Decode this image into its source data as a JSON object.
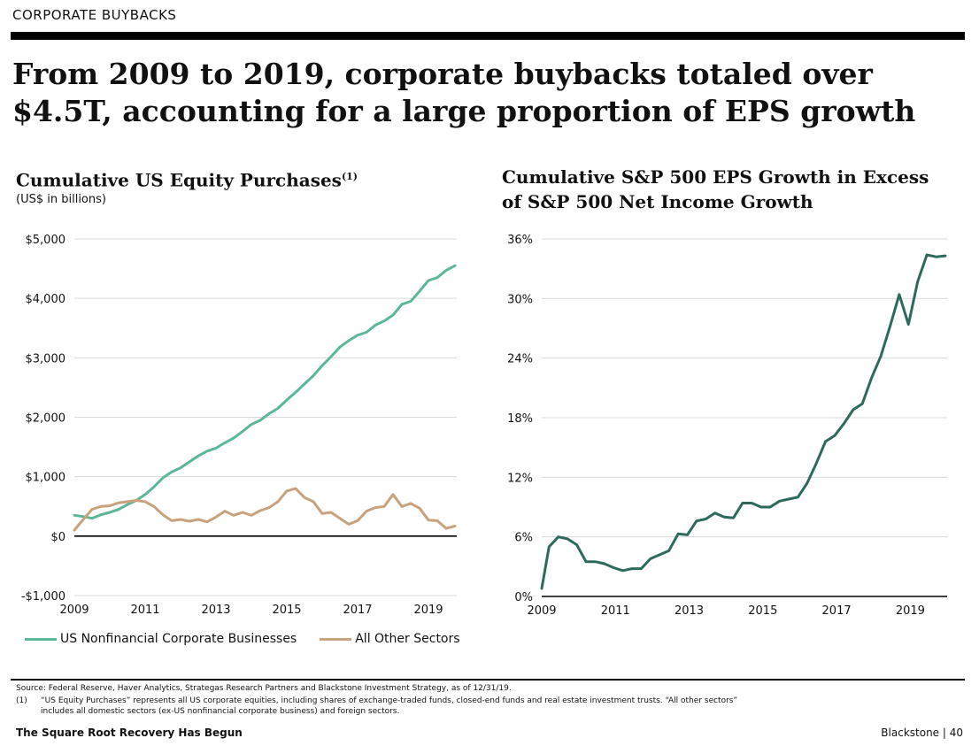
{
  "header": {
    "section_label": "CORPORATE BUYBACKS",
    "headline_line1": "From 2009 to 2019, corporate buybacks totaled over",
    "headline_line2": "$4.5T, accounting for a large proportion of EPS growth"
  },
  "colors": {
    "nonfinancial": "#5bb897",
    "other_sectors": "#c8a27c",
    "eps": "#2c6b5c",
    "grid": "#d9d9d9",
    "axis": "#000000"
  },
  "chart_data": [
    {
      "type": "line",
      "title": "Cumulative US Equity Purchases",
      "title_footnote": "(1)",
      "subtitle": "(US$ in billions)",
      "xlabel": "",
      "ylabel": "",
      "xlim": [
        2009,
        2019.8
      ],
      "ylim": [
        -1000,
        5000
      ],
      "ytick_values": [
        -1000,
        0,
        1000,
        2000,
        3000,
        4000,
        5000
      ],
      "ytick_labels": [
        "-$1,000",
        "$0",
        "$1,000",
        "$2,000",
        "$3,000",
        "$4,000",
        "$5,000"
      ],
      "xtick_values": [
        2009,
        2011,
        2013,
        2015,
        2017,
        2019
      ],
      "xtick_labels": [
        "2009",
        "2011",
        "2013",
        "2015",
        "2017",
        "2019"
      ],
      "grid": true,
      "series": [
        {
          "name": "US Nonfinancial Corporate Businesses",
          "x": [
            2009,
            2009.25,
            2009.5,
            2009.75,
            2010,
            2010.25,
            2010.5,
            2010.75,
            2011,
            2011.25,
            2011.5,
            2011.75,
            2012,
            2012.25,
            2012.5,
            2012.75,
            2013,
            2013.25,
            2013.5,
            2013.75,
            2014,
            2014.25,
            2014.5,
            2014.75,
            2015,
            2015.25,
            2015.5,
            2015.75,
            2016,
            2016.25,
            2016.5,
            2016.75,
            2017,
            2017.25,
            2017.5,
            2017.75,
            2018,
            2018.25,
            2018.5,
            2018.75,
            2019,
            2019.25,
            2019.5,
            2019.75
          ],
          "values": [
            350,
            330,
            300,
            360,
            400,
            450,
            530,
            600,
            700,
            830,
            980,
            1080,
            1150,
            1250,
            1350,
            1430,
            1480,
            1570,
            1650,
            1760,
            1880,
            1950,
            2060,
            2150,
            2290,
            2420,
            2560,
            2700,
            2870,
            3020,
            3180,
            3290,
            3380,
            3430,
            3550,
            3620,
            3720,
            3900,
            3950,
            4120,
            4300,
            4350,
            4470,
            4550
          ]
        },
        {
          "name": "All Other Sectors",
          "x": [
            2009,
            2009.25,
            2009.5,
            2009.75,
            2010,
            2010.25,
            2010.5,
            2010.75,
            2011,
            2011.25,
            2011.5,
            2011.75,
            2012,
            2012.25,
            2012.5,
            2012.75,
            2013,
            2013.25,
            2013.5,
            2013.75,
            2014,
            2014.25,
            2014.5,
            2014.75,
            2015,
            2015.25,
            2015.5,
            2015.75,
            2016,
            2016.25,
            2016.5,
            2016.75,
            2017,
            2017.25,
            2017.5,
            2017.75,
            2018,
            2018.25,
            2018.5,
            2018.75,
            2019,
            2019.25,
            2019.5,
            2019.75
          ],
          "values": [
            100,
            280,
            450,
            500,
            510,
            560,
            580,
            600,
            580,
            500,
            360,
            260,
            280,
            250,
            280,
            240,
            320,
            420,
            350,
            400,
            350,
            430,
            480,
            580,
            760,
            800,
            650,
            580,
            380,
            400,
            300,
            200,
            260,
            420,
            480,
            500,
            700,
            500,
            550,
            470,
            270,
            260,
            130,
            170
          ]
        }
      ],
      "legend": [
        "US Nonfinancial Corporate Businesses",
        "All Other Sectors"
      ],
      "legend_position": "bottom"
    },
    {
      "type": "line",
      "title": "Cumulative S&P 500 EPS Growth in Excess of S&P 500 Net Income Growth",
      "title_line1": "Cumulative S&P 500 EPS Growth in Excess",
      "title_line2": "of S&P 500 Net Income Growth",
      "xlabel": "",
      "ylabel": "",
      "xlim": [
        2009,
        2020
      ],
      "ylim": [
        0,
        36
      ],
      "ytick_values": [
        0,
        6,
        12,
        18,
        24,
        30,
        36
      ],
      "ytick_labels": [
        "0%",
        "6%",
        "12%",
        "18%",
        "24%",
        "30%",
        "36%"
      ],
      "xtick_values": [
        2009,
        2011,
        2013,
        2015,
        2017,
        2019
      ],
      "xtick_labels": [
        "2009",
        "2011",
        "2013",
        "2015",
        "2017",
        "2019"
      ],
      "grid": true,
      "series": [
        {
          "name": "Cumulative S&P 500 EPS Growth in Excess of Net Income Growth",
          "x": [
            2009,
            2009.2,
            2009.45,
            2009.7,
            2009.95,
            2010.2,
            2010.45,
            2010.7,
            2010.95,
            2011.2,
            2011.45,
            2011.7,
            2011.95,
            2012.2,
            2012.45,
            2012.7,
            2012.95,
            2013.2,
            2013.45,
            2013.7,
            2013.95,
            2014.2,
            2014.45,
            2014.7,
            2014.95,
            2015.2,
            2015.45,
            2015.7,
            2015.95,
            2016.2,
            2016.45,
            2016.7,
            2016.95,
            2017.2,
            2017.45,
            2017.7,
            2017.95,
            2018.2,
            2018.45,
            2018.7,
            2018.95,
            2019.2,
            2019.45,
            2019.7,
            2019.95
          ],
          "values": [
            0.8,
            5,
            6,
            5.8,
            5.2,
            3.5,
            3.5,
            3.3,
            2.9,
            2.6,
            2.8,
            2.8,
            3.8,
            4.2,
            4.6,
            6.3,
            6.2,
            7.6,
            7.8,
            8.4,
            8.0,
            7.9,
            9.4,
            9.4,
            9.0,
            9.0,
            9.6,
            9.8,
            10.0,
            11.4,
            13.4,
            15.6,
            16.2,
            17.4,
            18.8,
            19.4,
            22.0,
            24.2,
            27.2,
            30.4,
            27.4,
            31.7,
            34.4,
            34.2,
            34.3
          ]
        }
      ],
      "legend": [],
      "legend_position": "none"
    }
  ],
  "footer": {
    "source": "Source: Federal Reserve, Haver Analytics, Strategas Research Partners and Blackstone Investment Strategy, as of 12/31/19.",
    "footnote_num": "(1)",
    "footnote_text_line1": "“US Equity Purchases” represents all US corporate equities, including shares of exchange-traded funds, closed-end funds and real estate investment trusts. “All other sectors”",
    "footnote_text_line2": "includes all domestic sectors (ex-US nonfinancial corporate business) and foreign sectors.",
    "deck_title": "The Square Root Recovery Has Begun",
    "brand_page": "Blackstone  |  40"
  }
}
